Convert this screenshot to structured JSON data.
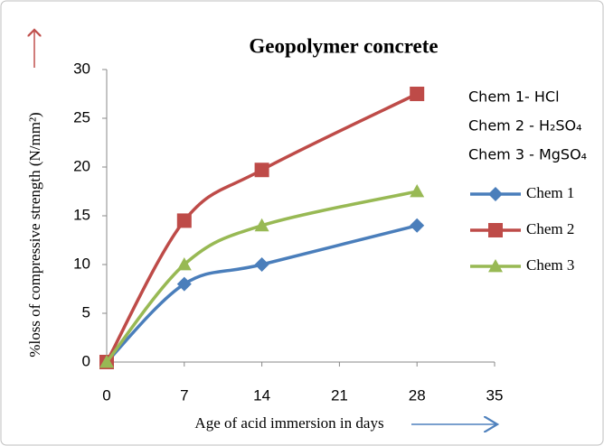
{
  "chart_data": {
    "type": "line",
    "title": "Geopolymer concrete",
    "x_label": "Age of acid immersion in days",
    "y_label": "%loss of  compressive strength  (N/mm²)",
    "annotations": [
      "Chem 1- HCl",
      "Chem 2 - H₂SO₄",
      "Chem 3 - MgSO₄"
    ],
    "x": [
      0,
      7,
      14,
      28
    ],
    "series": [
      {
        "name": "Chem 1",
        "color": "#4a7ebb",
        "marker": "diamond",
        "values": [
          0,
          8,
          10,
          14
        ]
      },
      {
        "name": "Chem 2",
        "color": "#be4b48",
        "marker": "square",
        "values": [
          0,
          14.5,
          19.7,
          27.5
        ]
      },
      {
        "name": "Chem 3",
        "color": "#98b954",
        "marker": "triangle",
        "values": [
          0,
          10,
          14,
          17.5
        ]
      }
    ],
    "xlim": [
      0,
      35
    ],
    "xticks": [
      0,
      7,
      14,
      21,
      28,
      35
    ],
    "ylim": [
      0,
      30
    ],
    "yticks": [
      0,
      5,
      10,
      15,
      20,
      25,
      30
    ],
    "grid": false,
    "legend": "right"
  }
}
